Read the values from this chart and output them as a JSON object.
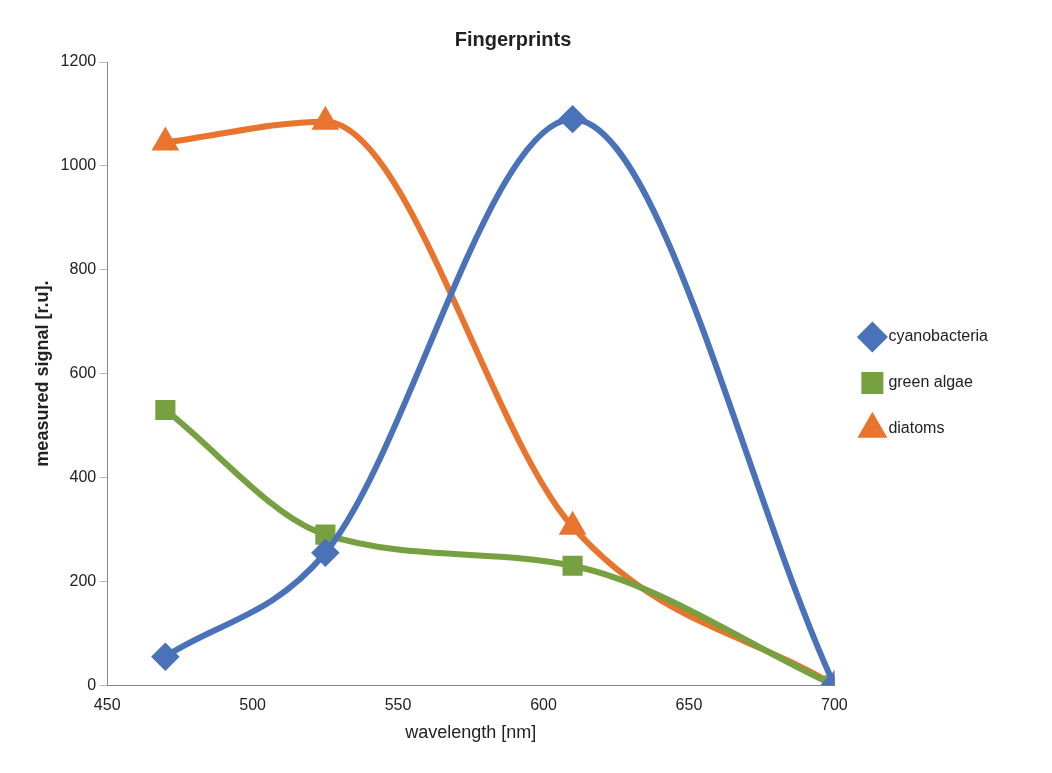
{
  "chart_data": {
    "type": "line",
    "title": "Fingerprints",
    "xlabel": "wavelength [nm]",
    "ylabel": "measured signal [r.u].",
    "x": [
      470,
      525,
      610,
      700
    ],
    "series": [
      {
        "name": "cyanobacteria",
        "color": "#4a72b8",
        "values": [
          55,
          255,
          1090,
          0
        ],
        "marker": "diamond"
      },
      {
        "name": "green algae",
        "color": "#77a040",
        "values": [
          530,
          290,
          230,
          0
        ],
        "marker": "square"
      },
      {
        "name": "diatoms",
        "color": "#e8742e",
        "values": [
          1045,
          1085,
          305,
          0
        ],
        "marker": "triangle"
      }
    ],
    "xlim": [
      450,
      700
    ],
    "xticks": [
      450,
      500,
      550,
      600,
      650,
      700
    ],
    "ylim": [
      0,
      1200
    ],
    "yticks": [
      0,
      200,
      400,
      600,
      800,
      1000,
      1200
    ],
    "grid": false,
    "legend": "right"
  }
}
